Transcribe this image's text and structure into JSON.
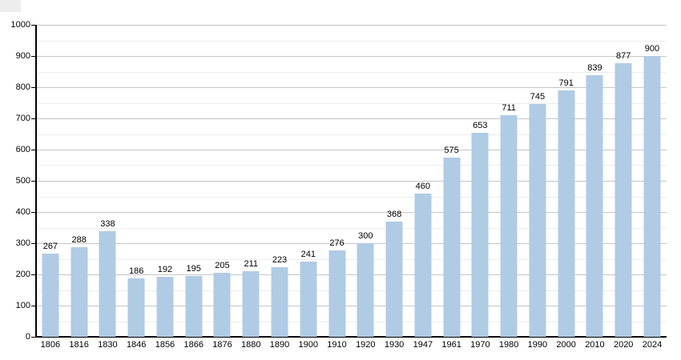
{
  "chart_data": {
    "type": "bar",
    "title": "",
    "xlabel": "",
    "ylabel": "",
    "categories": [
      "1806",
      "1816",
      "1830",
      "1846",
      "1856",
      "1866",
      "1876",
      "1880",
      "1890",
      "1900",
      "1910",
      "1920",
      "1930",
      "1947",
      "1961",
      "1970",
      "1980",
      "1990",
      "2000",
      "2010",
      "2020",
      "2024"
    ],
    "values": [
      267,
      288,
      338,
      186,
      192,
      195,
      205,
      211,
      223,
      241,
      276,
      300,
      368,
      460,
      575,
      653,
      711,
      745,
      791,
      839,
      877,
      900
    ],
    "ylim": [
      0,
      1000
    ],
    "yticks": [
      0,
      100,
      200,
      300,
      400,
      500,
      600,
      700,
      800,
      900,
      1000
    ],
    "ytick_minor_step": 50,
    "grid": "on",
    "legend": "none",
    "bar_color": "#b0cbe4",
    "grid_major_color": "#c6c6c6",
    "grid_minor_color": "#ececec",
    "axis_color": "#000000",
    "label_color": "#000000"
  }
}
